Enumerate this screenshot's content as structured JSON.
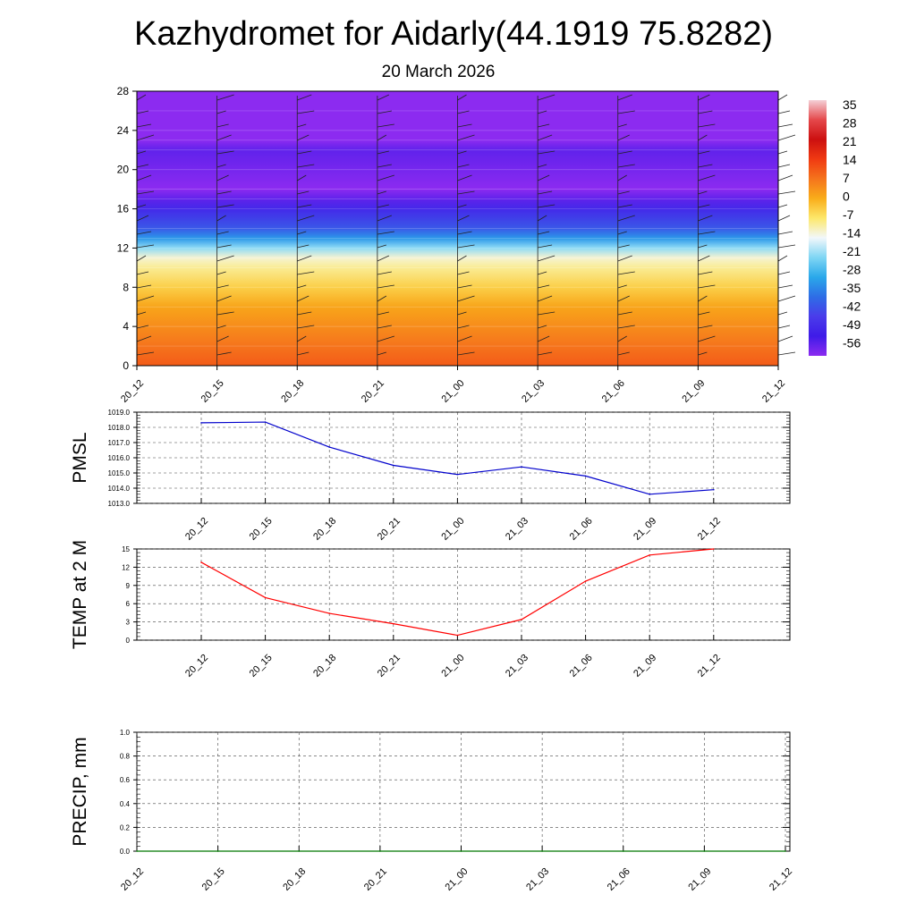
{
  "title": "Kazhydromet for Aidarly(44.1919 75.8282)",
  "subtitle": "20 March 2026",
  "time_labels": [
    "20_12",
    "20_15",
    "20_18",
    "20_21",
    "21_00",
    "21_03",
    "21_06",
    "21_09",
    "21_12"
  ],
  "colorbar": {
    "labels": [
      "35",
      "28",
      "21",
      "14",
      "7",
      "0",
      "-7",
      "-14",
      "-21",
      "-28",
      "-35",
      "-42",
      "-49",
      "-56"
    ],
    "stops": [
      {
        "value": 35,
        "color": "#f4cfd6"
      },
      {
        "value": 28,
        "color": "#e5484b"
      },
      {
        "value": 21,
        "color": "#cc1010"
      },
      {
        "value": 14,
        "color": "#f03a12"
      },
      {
        "value": 7,
        "color": "#f5741c"
      },
      {
        "value": 0,
        "color": "#f9ad1a"
      },
      {
        "value": -7,
        "color": "#fde86b"
      },
      {
        "value": -14,
        "color": "#f2f7fb"
      },
      {
        "value": -21,
        "color": "#7fd6f4"
      },
      {
        "value": -28,
        "color": "#2aa8ea"
      },
      {
        "value": -35,
        "color": "#2e6de6"
      },
      {
        "value": -42,
        "color": "#4a3cea"
      },
      {
        "value": -49,
        "color": "#3f1be8"
      },
      {
        "value": -56,
        "color": "#8c2bf0"
      }
    ]
  },
  "chart_data": [
    {
      "type": "heatmap",
      "name": "cross-section",
      "y_ticks": [
        "0",
        "4",
        "8",
        "12",
        "16",
        "20",
        "24",
        "28"
      ],
      "ylim": [
        0,
        28
      ],
      "x": [
        "20_12",
        "20_15",
        "20_18",
        "20_21",
        "21_00",
        "21_03",
        "21_06",
        "21_09",
        "21_12"
      ],
      "levels": [
        0,
        2,
        4,
        6,
        8,
        10,
        11,
        12,
        13,
        14,
        16,
        17,
        18,
        20,
        22,
        23,
        24,
        26,
        28
      ],
      "values_by_level": [
        10,
        7,
        4,
        1,
        -4,
        -9,
        -12,
        -20,
        -30,
        -38,
        -46,
        -52,
        -58,
        -54,
        -52,
        -58,
        -64,
        -64,
        -64
      ],
      "wind_barbs": true
    },
    {
      "type": "line",
      "ylabel": "PMSL",
      "y_ticks": [
        "1013.0",
        "1014.0",
        "1015.0",
        "1016.0",
        "1017.0",
        "1018.0",
        "1019.0"
      ],
      "ylim": [
        1013,
        1019
      ],
      "x": [
        "20_12",
        "20_15",
        "20_18",
        "20_21",
        "21_00",
        "21_03",
        "21_06",
        "21_09",
        "21_12"
      ],
      "series": [
        {
          "values": [
            1018.3,
            1018.35,
            1016.7,
            1015.5,
            1014.9,
            1015.4,
            1014.8,
            1013.6,
            1013.9
          ],
          "color": "#0000cc"
        }
      ]
    },
    {
      "type": "line",
      "ylabel": "TEMP at 2 M",
      "y_ticks": [
        "0",
        "3",
        "6",
        "9",
        "12",
        "15"
      ],
      "ylim": [
        0,
        15
      ],
      "x": [
        "20_12",
        "20_15",
        "20_18",
        "20_21",
        "21_00",
        "21_03",
        "21_06",
        "21_09",
        "21_12"
      ],
      "series": [
        {
          "values": [
            12.8,
            7.0,
            4.4,
            2.7,
            0.8,
            3.4,
            9.7,
            14.0,
            15.0
          ],
          "color": "#ff0000"
        }
      ]
    },
    {
      "type": "line",
      "ylabel": "PRECIP, mm",
      "y_ticks": [
        "0.0",
        "0.2",
        "0.4",
        "0.6",
        "0.8",
        "1.0"
      ],
      "ylim": [
        0,
        1
      ],
      "x": [
        "20_12",
        "20_15",
        "20_18",
        "20_21",
        "21_00",
        "21_03",
        "21_06",
        "21_09",
        "21_12"
      ],
      "series": [
        {
          "values": [
            0,
            0,
            0,
            0,
            0,
            0,
            0,
            0,
            0
          ],
          "color": "#007700"
        }
      ]
    }
  ]
}
